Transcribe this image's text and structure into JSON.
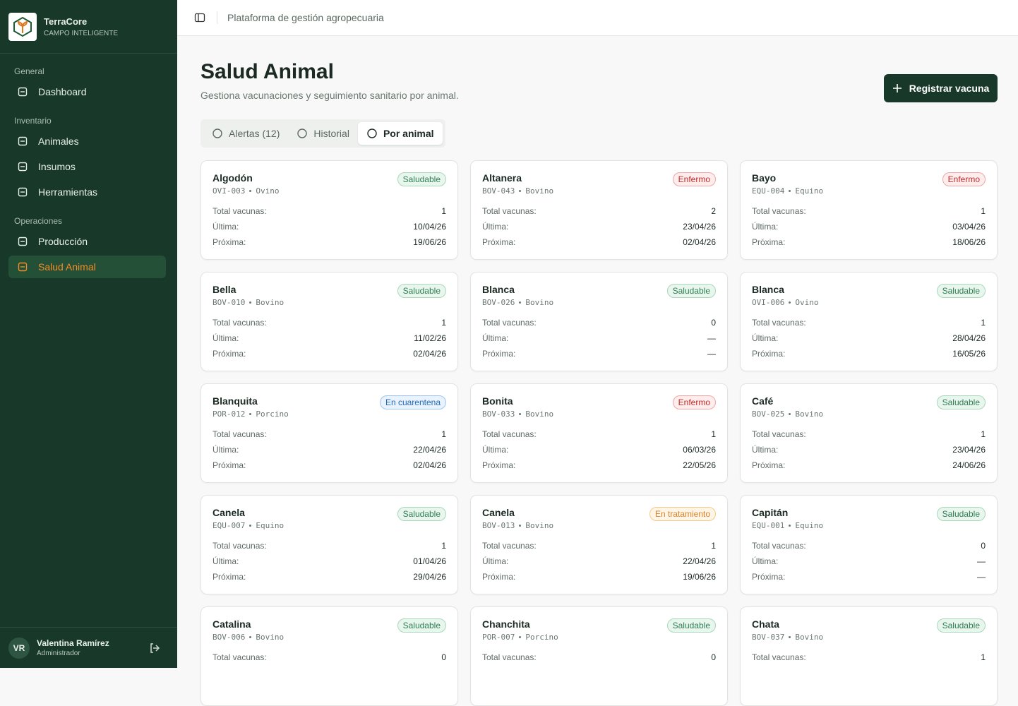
{
  "brand": {
    "name": "TerraCore",
    "tagline": "CAMPO INTELIGENTE"
  },
  "nav": [
    {
      "heading": "General",
      "items": [
        {
          "label": "Dashboard"
        }
      ]
    },
    {
      "heading": "Inventario",
      "items": [
        {
          "label": "Animales"
        },
        {
          "label": "Insumos"
        },
        {
          "label": "Herramientas"
        }
      ]
    },
    {
      "heading": "Operaciones",
      "items": [
        {
          "label": "Producción"
        },
        {
          "label": "Salud Animal",
          "active": true
        }
      ]
    }
  ],
  "user": {
    "initials": "VR",
    "name": "Valentina Ramírez",
    "role": "Administrador"
  },
  "topbar": {
    "title": "Plataforma de gestión agropecuaria"
  },
  "page": {
    "title": "Salud Animal",
    "subtitle": "Gestiona vacunaciones y seguimiento sanitario por animal.",
    "action": "Registrar vacuna"
  },
  "tabs": [
    {
      "label": "Alertas (12)"
    },
    {
      "label": "Historial"
    },
    {
      "label": "Por animal",
      "active": true
    }
  ],
  "field_labels": {
    "total": "Total vacunas:",
    "last": "Última:",
    "next": "Próxima:"
  },
  "cards": [
    {
      "name": "Algodón",
      "id": "OVI-003",
      "species": "Ovino",
      "status": "Saludable",
      "tone": "success",
      "total": 1,
      "last": "10/04/26",
      "next": "19/06/26"
    },
    {
      "name": "Altanera",
      "id": "BOV-043",
      "species": "Bovino",
      "status": "Enfermo",
      "tone": "danger",
      "total": 2,
      "last": "23/04/26",
      "next": "02/04/26"
    },
    {
      "name": "Bayo",
      "id": "EQU-004",
      "species": "Equino",
      "status": "Enfermo",
      "tone": "danger",
      "total": 1,
      "last": "03/04/26",
      "next": "18/06/26"
    },
    {
      "name": "Bella",
      "id": "BOV-010",
      "species": "Bovino",
      "status": "Saludable",
      "tone": "success",
      "total": 1,
      "last": "11/02/26",
      "next": "02/04/26"
    },
    {
      "name": "Blanca",
      "id": "BOV-026",
      "species": "Bovino",
      "status": "Saludable",
      "tone": "success",
      "total": 0,
      "last": "—",
      "next": "—"
    },
    {
      "name": "Blanca",
      "id": "OVI-006",
      "species": "Ovino",
      "status": "Saludable",
      "tone": "success",
      "total": 1,
      "last": "28/04/26",
      "next": "16/05/26"
    },
    {
      "name": "Blanquita",
      "id": "POR-012",
      "species": "Porcino",
      "status": "En cuarentena",
      "tone": "info",
      "total": 1,
      "last": "22/04/26",
      "next": "02/04/26"
    },
    {
      "name": "Bonita",
      "id": "BOV-033",
      "species": "Bovino",
      "status": "Enfermo",
      "tone": "danger",
      "total": 1,
      "last": "06/03/26",
      "next": "22/05/26"
    },
    {
      "name": "Café",
      "id": "BOV-025",
      "species": "Bovino",
      "status": "Saludable",
      "tone": "success",
      "total": 1,
      "last": "23/04/26",
      "next": "24/06/26"
    },
    {
      "name": "Canela",
      "id": "EQU-007",
      "species": "Equino",
      "status": "Saludable",
      "tone": "success",
      "total": 1,
      "last": "01/04/26",
      "next": "29/04/26"
    },
    {
      "name": "Canela",
      "id": "BOV-013",
      "species": "Bovino",
      "status": "En tratamiento",
      "tone": "warning",
      "total": 1,
      "last": "22/04/26",
      "next": "19/06/26"
    },
    {
      "name": "Capitán",
      "id": "EQU-001",
      "species": "Equino",
      "status": "Saludable",
      "tone": "success",
      "total": 0,
      "last": "—",
      "next": "—"
    },
    {
      "name": "Catalina",
      "id": "BOV-006",
      "species": "Bovino",
      "status": "Saludable",
      "tone": "success",
      "total": 0
    },
    {
      "name": "Chanchita",
      "id": "POR-007",
      "species": "Porcino",
      "status": "Saludable",
      "tone": "success",
      "total": 0
    },
    {
      "name": "Chata",
      "id": "BOV-037",
      "species": "Bovino",
      "status": "Saludable",
      "tone": "success",
      "total": 1
    }
  ]
}
